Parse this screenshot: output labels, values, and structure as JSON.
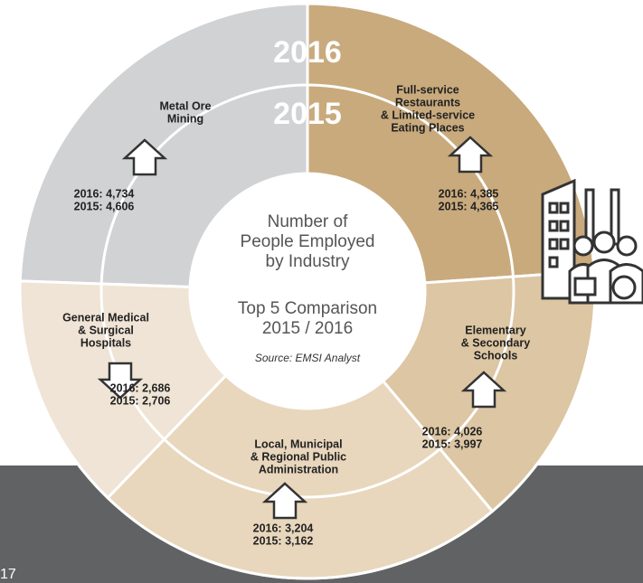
{
  "ring_labels": {
    "outer": "2016",
    "inner": "2015"
  },
  "center": {
    "title": [
      "Number of",
      "People Employed",
      "by Industry"
    ],
    "comparison": [
      "Top 5 Comparison",
      "2015 / 2016"
    ],
    "source": "Source: EMSI Analyst"
  },
  "segments": [
    {
      "label": [
        "Metal Ore",
        "Mining"
      ],
      "v2016": "2016: 4,734",
      "v2015": "2015: 4,606"
    },
    {
      "label": [
        "Full-service",
        "Restaurants",
        "& Limited-service",
        "Eating Places"
      ],
      "v2016": "2016: 4,385",
      "v2015": "2015: 4,365"
    },
    {
      "label": [
        "Elementary",
        "& Secondary",
        "Schools"
      ],
      "v2016": "2016: 4,026",
      "v2015": "2015: 3,997"
    },
    {
      "label": [
        "Local, Municipal",
        "& Regional Public",
        "Administration"
      ],
      "v2016": "2016: 3,204",
      "v2015": "2015: 3,162"
    },
    {
      "label": [
        "General Medical",
        "& Surgical",
        "Hospitals"
      ],
      "v2016": "2016: 2,686",
      "v2015": "2015: 2,706"
    }
  ],
  "page_number": "17"
}
